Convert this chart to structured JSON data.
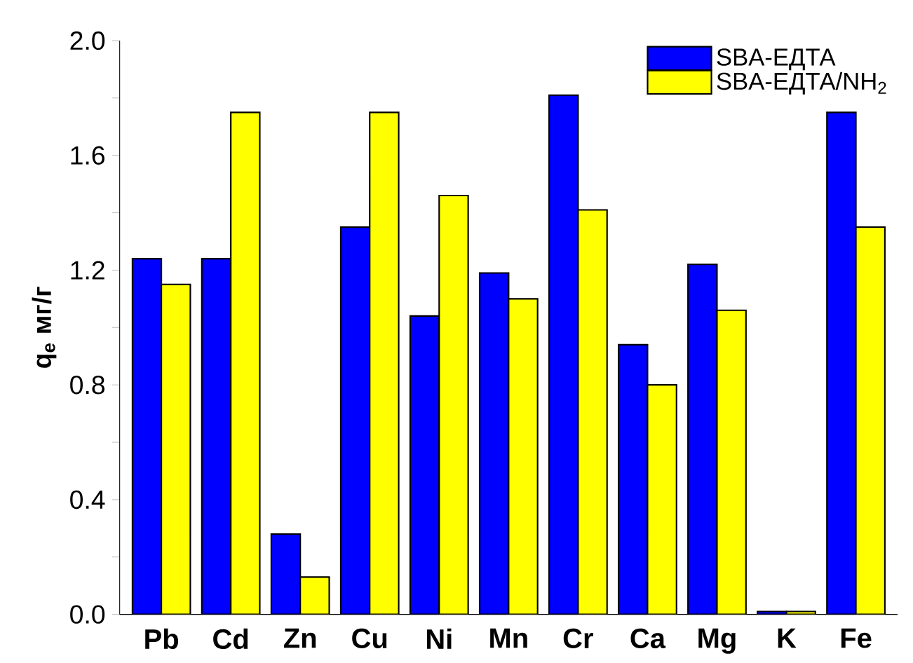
{
  "chart_data": {
    "type": "bar",
    "ylabel": "q$_{e}$ мг/г",
    "categories": [
      "Pb",
      "Cd",
      "Zn",
      "Cu",
      "Ni",
      "Mn",
      "Cr",
      "Ca",
      "Mg",
      "K",
      "Fe"
    ],
    "series": [
      {
        "name": "SBA-ЕДТА",
        "color": "#0000ff",
        "values": [
          1.24,
          1.24,
          0.28,
          1.35,
          1.04,
          1.19,
          1.81,
          0.94,
          1.22,
          0.01,
          1.75
        ]
      },
      {
        "name": "SBA-ЕДТА/NH$_{2}$",
        "color": "#ffff00",
        "values": [
          1.15,
          1.75,
          0.13,
          1.75,
          1.46,
          1.1,
          1.41,
          0.8,
          1.06,
          0.01,
          1.35
        ]
      }
    ],
    "ylim": [
      0,
      2.0
    ],
    "yticks": [
      {
        "value": 0,
        "label": "0.0"
      },
      {
        "value": 0.2,
        "label": null
      },
      0.4,
      {
        "value": 0.6,
        "label": null
      },
      0.8,
      {
        "value": 1.0,
        "label": null
      },
      1.2,
      {
        "value": 1.4,
        "label": null
      },
      1.6,
      {
        "value": 1.8,
        "label": null
      },
      {
        "value": 2,
        "label": "2.0"
      }
    ],
    "grid": false,
    "legend": "top right"
  }
}
